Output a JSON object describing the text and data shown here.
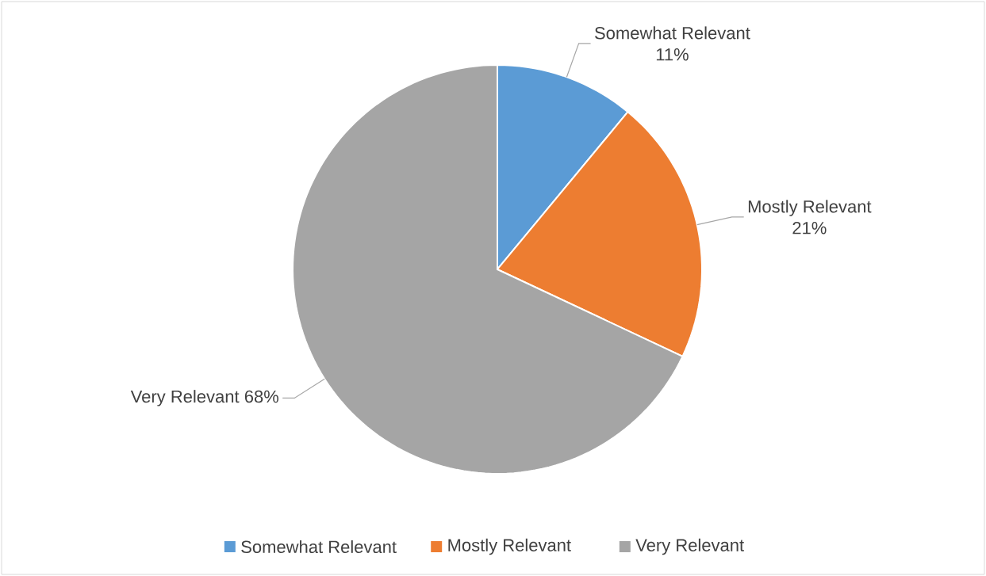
{
  "chart_data": {
    "type": "pie",
    "categories": [
      "Somewhat Relevant",
      "Mostly Relevant",
      "Very Relevant"
    ],
    "values": [
      11,
      21,
      68
    ],
    "value_labels": [
      "11%",
      "21%",
      "68%"
    ],
    "colors": [
      "#5b9bd5",
      "#ed7d31",
      "#a5a5a5"
    ],
    "legend": "bottom"
  }
}
